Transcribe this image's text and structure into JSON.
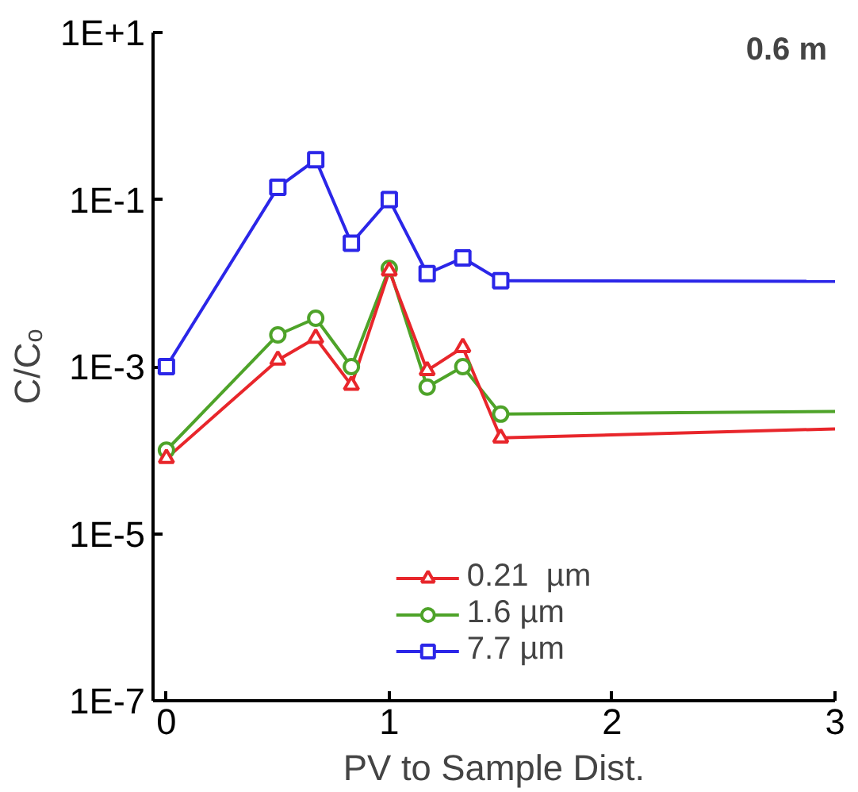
{
  "chart_data": {
    "type": "line",
    "xlabel": "PV to Sample Dist.",
    "ylabel": "C/Cₒ",
    "annotations": [
      "0.6 m"
    ],
    "log": "y",
    "grid": false,
    "legend": "bottom",
    "xlim": [
      -0.06,
      3
    ],
    "xticks": [
      0,
      1,
      2,
      3
    ],
    "ylim": [
      1e-07,
      10
    ],
    "yticks": [
      {
        "value": 10,
        "label": "1E+1"
      },
      {
        "value": 0.1,
        "label": "1E-1"
      },
      {
        "value": 0.001,
        "label": "1E-3"
      },
      {
        "value": 1e-05,
        "label": "1E-5"
      },
      {
        "value": 1e-07,
        "label": "1E-7"
      }
    ],
    "series": [
      {
        "color": "#e8262b",
        "x": [
          1.5,
          3
        ],
        "values": [
          0.00014,
          0.00018
        ]
      },
      {
        "color": "#4ea329",
        "x": [
          1.5,
          3
        ],
        "values": [
          0.00027,
          0.00029
        ]
      },
      {
        "color": "#2b26e8",
        "x": [
          1.5,
          3
        ],
        "values": [
          0.0107,
          0.0105
        ]
      },
      {
        "name": "0.21  µm",
        "color": "#e8262b",
        "marker": "triangle",
        "x": [
          0,
          0.5,
          0.67,
          0.83,
          1,
          1.17,
          1.33,
          1.5
        ],
        "values": [
          8e-05,
          0.0012,
          0.0022,
          0.0006,
          0.014,
          0.0009,
          0.0017,
          0.00014
        ]
      },
      {
        "name": "1.6 µm",
        "color": "#4ea329",
        "marker": "circle",
        "x": [
          0,
          0.5,
          0.67,
          0.83,
          1,
          1.17,
          1.33,
          1.5
        ],
        "values": [
          0.0001,
          0.0024,
          0.0038,
          0.001,
          0.015,
          0.00057,
          0.001,
          0.00027
        ]
      },
      {
        "name": "7.7 µm",
        "color": "#2b26e8",
        "marker": "square",
        "x": [
          0,
          0.5,
          0.67,
          0.83,
          1,
          1.17,
          1.33,
          1.5
        ],
        "values": [
          0.001,
          0.14,
          0.3,
          0.03,
          0.1,
          0.013,
          0.02,
          0.0107
        ]
      }
    ]
  }
}
